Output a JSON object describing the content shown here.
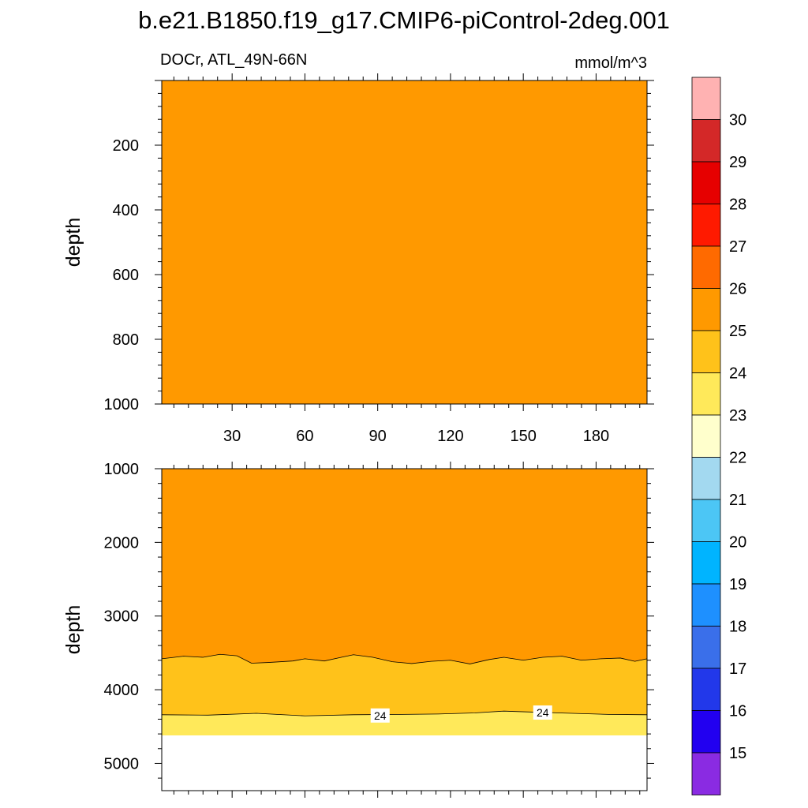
{
  "figure": {
    "title": "b.e21.B1850.f19_g17.CMIP6-piControl-2deg.001",
    "left_string": "DOCr, ATL_49N-66N",
    "right_string": "mmol/m^3"
  },
  "chart_data": [
    {
      "type": "heatmap",
      "panel": "upper",
      "xlabel": "",
      "ylabel": "depth",
      "xlim": [
        1,
        201
      ],
      "ylim": [
        0,
        1000
      ],
      "y_reversed": true,
      "xticks": [
        30,
        60,
        90,
        120,
        150,
        180
      ],
      "xtick_labels": [
        "30",
        "60",
        "90",
        "120",
        "150",
        "180"
      ],
      "yticks": [
        200,
        400,
        600,
        800,
        1000
      ],
      "ytick_labels": [
        "200",
        "400",
        "600",
        "800",
        "1000"
      ],
      "fill_bands": [
        {
          "range": "25-26",
          "color": "#FF9900",
          "depth_top": [
            [
              1,
              0
            ],
            [
              201,
              0
            ]
          ]
        }
      ],
      "contour_labels": []
    },
    {
      "type": "heatmap",
      "panel": "lower",
      "xlabel": "",
      "ylabel": "depth",
      "xlim": [
        1,
        201
      ],
      "ylim": [
        1000,
        5370
      ],
      "y_reversed": true,
      "xticks": [
        30,
        60,
        90,
        120,
        150,
        180
      ],
      "yticks": [
        1000,
        2000,
        3000,
        4000,
        5000
      ],
      "ytick_labels": [
        "1000",
        "2000",
        "3000",
        "4000",
        "5000"
      ],
      "data_bottom_depth": 4620,
      "fill_bands": [
        {
          "range": "25-26",
          "color": "#FF9900",
          "depth_top": [
            [
              1,
              1000
            ],
            [
              201,
              1000
            ]
          ]
        },
        {
          "range": "24-25",
          "color": "#FFC21A",
          "depth_top": [
            [
              1,
              3580
            ],
            [
              10,
              3545
            ],
            [
              18,
              3560
            ],
            [
              25,
              3520
            ],
            [
              32,
              3540
            ],
            [
              38,
              3640
            ],
            [
              45,
              3630
            ],
            [
              55,
              3610
            ],
            [
              60,
              3580
            ],
            [
              68,
              3610
            ],
            [
              75,
              3560
            ],
            [
              80,
              3525
            ],
            [
              88,
              3560
            ],
            [
              96,
              3620
            ],
            [
              104,
              3645
            ],
            [
              112,
              3615
            ],
            [
              120,
              3600
            ],
            [
              128,
              3650
            ],
            [
              136,
              3590
            ],
            [
              142,
              3560
            ],
            [
              150,
              3600
            ],
            [
              158,
              3560
            ],
            [
              166,
              3545
            ],
            [
              174,
              3600
            ],
            [
              182,
              3580
            ],
            [
              190,
              3570
            ],
            [
              196,
              3615
            ],
            [
              201,
              3580
            ]
          ]
        },
        {
          "range": "23-24",
          "color": "#FFE95A",
          "depth_top": [
            [
              1,
              4340
            ],
            [
              20,
              4345
            ],
            [
              40,
              4320
            ],
            [
              60,
              4355
            ],
            [
              80,
              4340
            ],
            [
              100,
              4335
            ],
            [
              115,
              4330
            ],
            [
              130,
              4315
            ],
            [
              142,
              4290
            ],
            [
              155,
              4305
            ],
            [
              170,
              4320
            ],
            [
              185,
              4335
            ],
            [
              201,
              4340
            ]
          ]
        }
      ],
      "contour_labels": [
        {
          "text": "24",
          "x": 91,
          "depth": 4350
        },
        {
          "text": "24",
          "x": 158,
          "depth": 4310
        }
      ]
    }
  ],
  "colorbar": {
    "boundary_labels": [
      "30",
      "29",
      "28",
      "27",
      "26",
      "25",
      "24",
      "23",
      "22",
      "21",
      "20",
      "19",
      "18",
      "17",
      "16",
      "15"
    ],
    "colors": [
      "#FFB2B2",
      "#D42828",
      "#E60000",
      "#FF1A00",
      "#FF6A00",
      "#FF9900",
      "#FFC21A",
      "#FFE95A",
      "#FFFFCC",
      "#A3D9F0",
      "#4CC6F5",
      "#00B4FF",
      "#1E90FF",
      "#3A6FEA",
      "#2238EA",
      "#2200F0",
      "#8A2BE2"
    ]
  }
}
